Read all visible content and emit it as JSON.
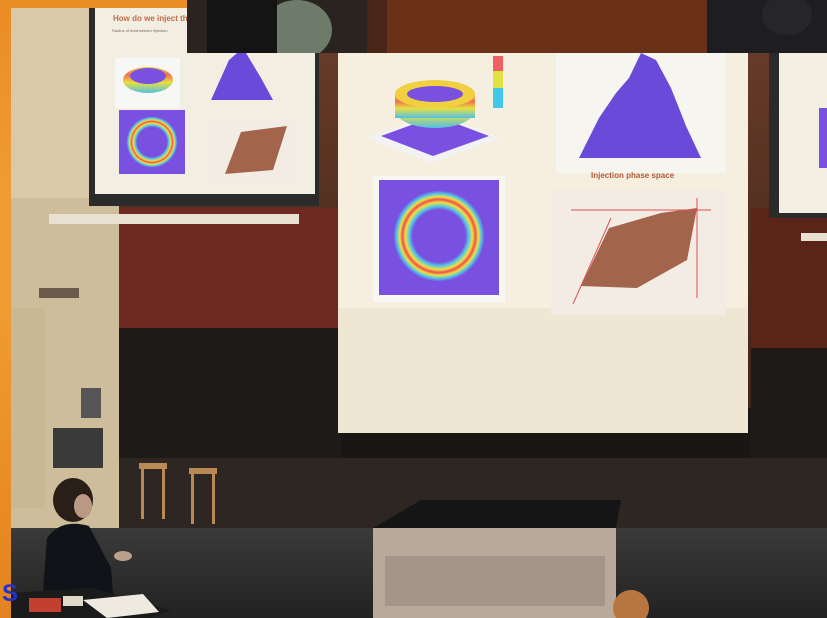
{
  "slide": {
    "title": "How do we inject the",
    "subtitle_small": "Radius of downstream injection",
    "label_phase_space": "Injection phase space"
  },
  "caption_fragment": "S",
  "colors": {
    "frame": "#e88a22",
    "caption": "#2233cc",
    "screen": "#f6efe0",
    "plot_purple": "#7a50e0",
    "phase_brown": "#a3644c"
  },
  "icons": [
    "projector-screen-left",
    "projector-screen-center",
    "projector-screen-right",
    "presenter",
    "lectern",
    "stools"
  ]
}
